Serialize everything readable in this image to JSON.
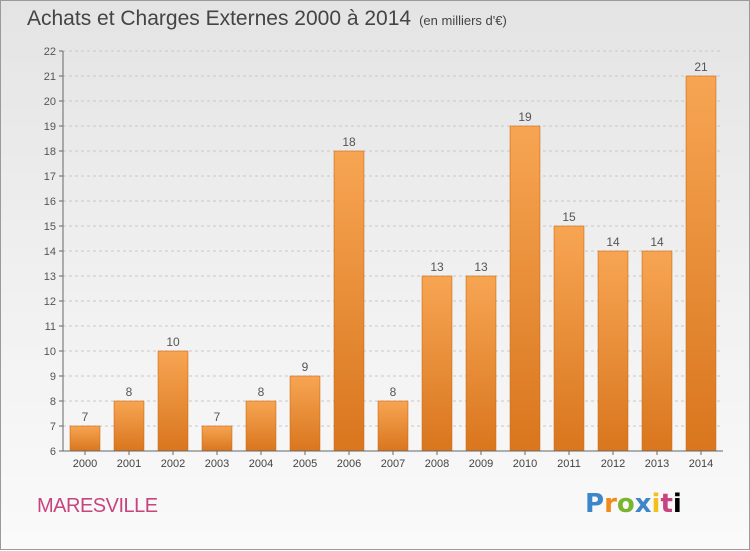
{
  "header": {
    "title": "Achats et Charges Externes 2000 à 2014",
    "subtitle": "(en milliers d'€)"
  },
  "footer": {
    "location": "MARESVILLE",
    "logo_letters": [
      "P",
      "r",
      "o",
      "x",
      "i",
      "t",
      "i"
    ]
  },
  "colors": {
    "bar_top": "#f7a553",
    "bar_bottom": "#d9761e",
    "bar_edge": "#c86a18",
    "location_text": "#c8447e"
  },
  "chart_data": {
    "type": "bar",
    "title": "Achats et Charges Externes 2000 à 2014",
    "subtitle": "(en milliers d'€)",
    "xlabel": "",
    "ylabel": "",
    "categories": [
      "2000",
      "2001",
      "2002",
      "2003",
      "2004",
      "2005",
      "2006",
      "2007",
      "2008",
      "2009",
      "2010",
      "2011",
      "2012",
      "2013",
      "2014"
    ],
    "values": [
      7,
      8,
      10,
      7,
      8,
      9,
      18,
      8,
      13,
      13,
      19,
      15,
      14,
      14,
      21
    ],
    "ylim": [
      6,
      22
    ],
    "yticks": [
      6,
      7,
      8,
      9,
      10,
      11,
      12,
      13,
      14,
      15,
      16,
      17,
      18,
      19,
      20,
      21,
      22
    ],
    "grid": "horizontal-dashed",
    "legend": "none",
    "data_labels": true
  }
}
